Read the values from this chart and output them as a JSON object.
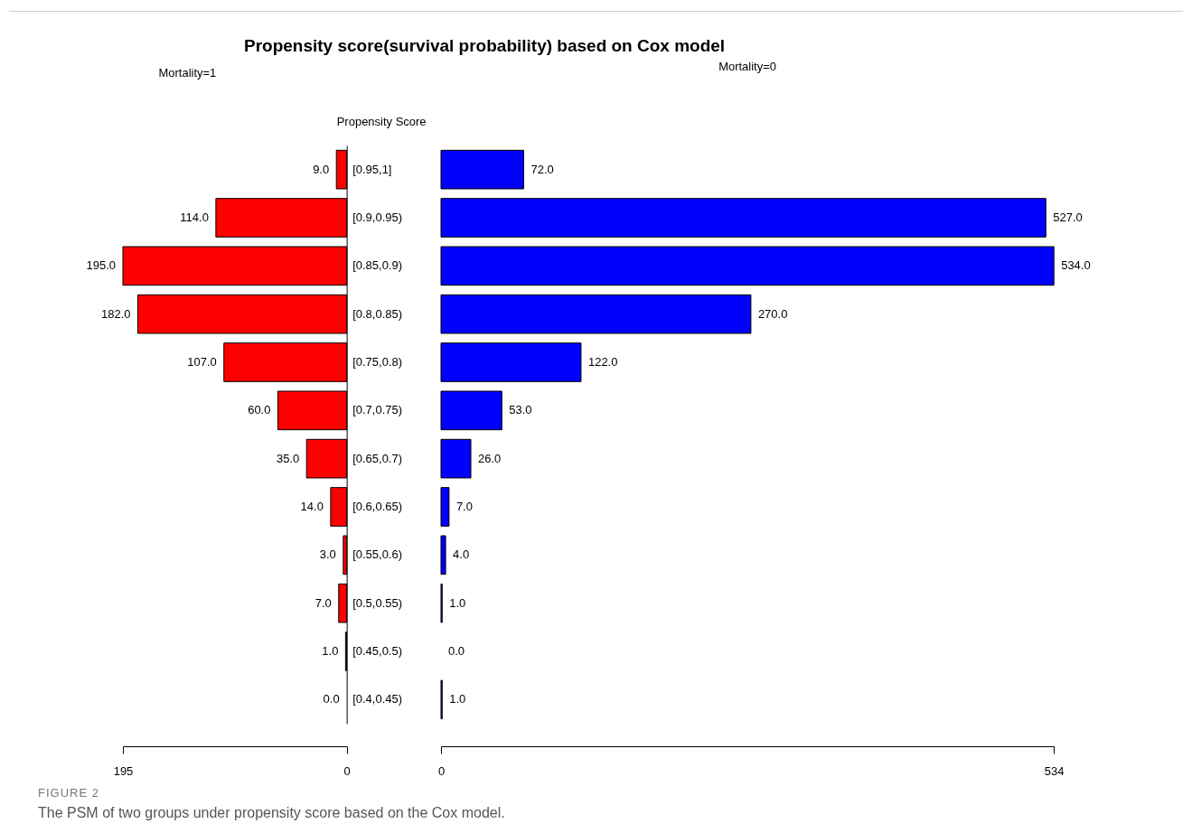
{
  "chart_data": [
    {
      "type": "bar",
      "orientation": "horizontal",
      "title": "Propensity score(survival probability) based on Cox model",
      "subtitle": "Mortality=1",
      "ylabel": "Propensity Score",
      "categories": [
        "[0.95,1]",
        "[0.9,0.95)",
        "[0.85,0.9)",
        "[0.8,0.85)",
        "[0.75,0.8)",
        "[0.7,0.75)",
        "[0.65,0.7)",
        "[0.6,0.65)",
        "[0.55,0.6)",
        "[0.5,0.55)",
        "[0.45,0.5)",
        "[0.4,0.45)"
      ],
      "values": [
        9,
        114,
        195,
        182,
        107,
        60,
        35,
        14,
        3,
        7,
        1,
        0
      ],
      "value_labels": [
        "9.0",
        "114.0",
        "195.0",
        "182.0",
        "107.0",
        "60.0",
        "35.0",
        "14.0",
        "3.0",
        "7.0",
        "1.0",
        "0.0"
      ],
      "color": "#ff0000",
      "xlim": [
        195,
        0
      ],
      "xticks": [
        195,
        0
      ],
      "grid": false,
      "annotations": [
        "FIGURE 2",
        "The PSM of two groups under propensity score based on the Cox model."
      ]
    },
    {
      "type": "bar",
      "orientation": "horizontal",
      "subtitle": "Mortality=0",
      "categories": [
        null,
        null,
        null,
        null,
        null,
        null,
        null,
        null,
        null,
        null,
        null,
        null
      ],
      "values": [
        72,
        527,
        534,
        270,
        122,
        53,
        26,
        7,
        4,
        1,
        0,
        1
      ],
      "value_labels": [
        "72.0",
        "527.0",
        "534.0",
        "270.0",
        "122.0",
        "53.0",
        "26.0",
        "7.0",
        "4.0",
        "1.0",
        "0.0",
        "1.0"
      ],
      "color": "#0000ff",
      "xlim": [
        0,
        534
      ],
      "xticks": [
        0,
        534
      ],
      "grid": false
    }
  ]
}
